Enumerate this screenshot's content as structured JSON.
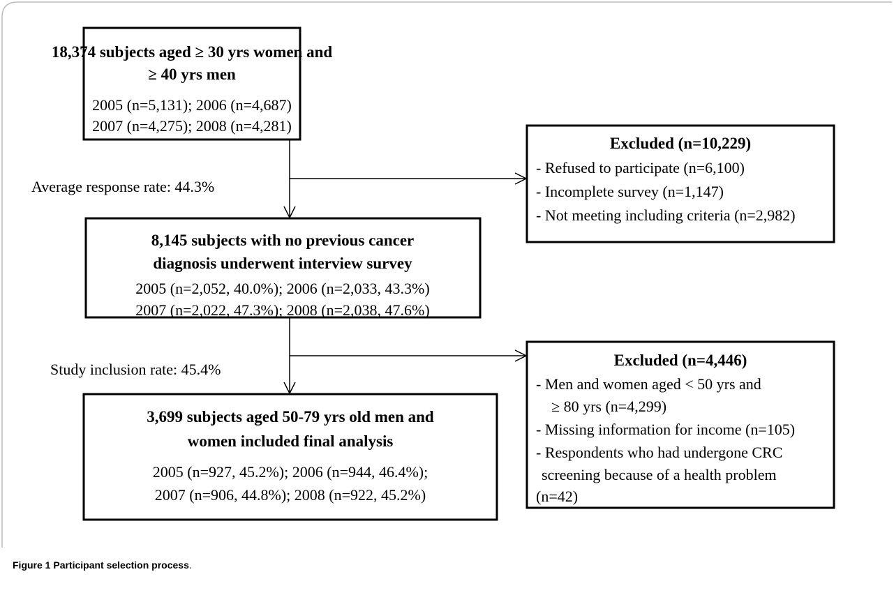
{
  "boxes": [
    {
      "title": [
        "18,374 subjects aged ≥ 30 yrs women and",
        "≥  40 yrs men"
      ],
      "lines": [
        "2005 (n=5,131); 2006 (n=4,687)",
        "2007 (n=4,275); 2008 (n=4,281)"
      ]
    },
    {
      "title": [
        "8,145 subjects with  no previous cancer",
        "diagnosis underwent interview survey"
      ],
      "lines": [
        "2005 (n=2,052, 40.0%); 2006 (n=2,033, 43.3%)",
        "2007 (n=2,022, 47.3%); 2008 (n=2,038, 47.6%)"
      ]
    },
    {
      "title": [
        "3,699 subjects aged 50-79 yrs old men and",
        "women included final analysis"
      ],
      "lines": [
        "2005 (n=927, 45.2%); 2006 (n=944, 46.4%);",
        "2007 (n=906, 44.8%); 2008 (n=922, 45.2%)"
      ]
    }
  ],
  "exclusions": [
    {
      "title": "Excluded (n=10,229)",
      "items": [
        "- Refused  to participate (n=6,100)",
        "- Incomplete survey (n=1,147)",
        "- Not meeting including criteria (n=2,982)"
      ]
    },
    {
      "title": "Excluded (n=4,446)",
      "items": [
        "- Men and women aged < 50 yrs and",
        "≥ 80 yrs (n=4,299)",
        "- Missing information for income (n=105)",
        "- Respondents who had undergone CRC",
        "screening because of a health problem",
        "(n=42)"
      ]
    }
  ],
  "flow_labels": [
    "Average response rate: 44.3%",
    "Study inclusion rate: 45.4%"
  ],
  "caption": {
    "label": "Figure 1",
    "title": "Participant selection process",
    "end": "."
  }
}
